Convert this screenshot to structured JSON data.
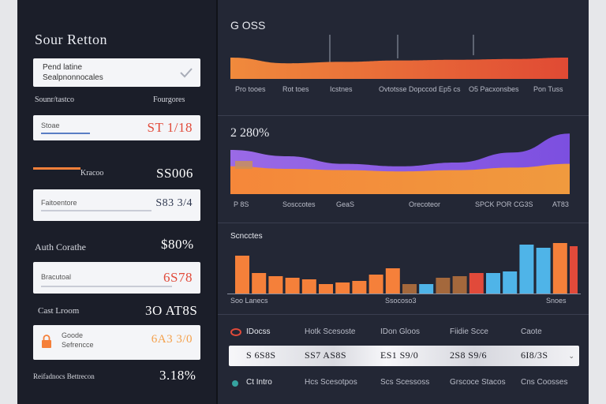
{
  "sidebar": {
    "title": "Sour Retton",
    "search_card": {
      "line1": "Pend latine",
      "line2": "Sealpnonnocales"
    },
    "section_header": {
      "left": "Sounr/tastco",
      "right": "Fourgores"
    },
    "field1": {
      "label": "Stoae",
      "value": "ST 1/18"
    },
    "row2": {
      "label": "Kracoo",
      "value": "SS006"
    },
    "field2": {
      "label": "Faitoentore",
      "value": "S83 3/4"
    },
    "row3": {
      "label": "Auth Corathe",
      "value": "$80%"
    },
    "field3": {
      "label": "Bracutoal",
      "value": "6S78"
    },
    "row4": {
      "label": "Cast Lroom",
      "value": "3O AT8S"
    },
    "field4": {
      "line1": "Goode",
      "line2": "Sefrencce",
      "value": "6A3 3/0"
    },
    "row5": {
      "label": "Reifadnocs Bettrecon",
      "value": "3.18%"
    }
  },
  "panel_top": {
    "title": "G OSS",
    "labels": [
      "Pro tooes",
      "Rot toes",
      "Icstnes",
      "Ovtotsse Dopccod Ep5 cs",
      "O5 Pacxonsbes",
      "Pon Tuss"
    ]
  },
  "panel_mid": {
    "value": "2 280%",
    "labels": [
      "P 8S",
      "Sosccotes",
      "GeaS",
      "Orecoteor",
      "SPCK POR CG3S",
      "AT83"
    ]
  },
  "panel_bars": {
    "label": "Scncctes",
    "axis_labels": [
      "Soo Lanecs",
      "Ssocoso3",
      "Snoes"
    ]
  },
  "table": {
    "header": [
      "IDocss",
      "Hotk Scesoste",
      "IDon Gloos",
      "Fiidie Scce",
      "Caote"
    ],
    "selected": [
      "S 6S8S",
      "SS7 AS8S",
      "ES1 S9/0",
      "2S8 S9/6",
      "6I8/3S"
    ],
    "footer": [
      "Ct Intro",
      "Hcs Scesotpos",
      "Scs Scessoss",
      "Grscoce Stacos",
      "Cns Coosses"
    ]
  },
  "colors": {
    "orange": "#f5803a",
    "purple": "#8a5cf2",
    "blue": "#4fb4e8",
    "accent_red": "#e14a3a"
  },
  "chart_data": [
    {
      "type": "area",
      "title": "G OSS",
      "x": [
        0,
        1,
        2,
        3,
        4,
        5,
        6
      ],
      "series": [
        {
          "name": "orange",
          "values": [
            30,
            22,
            24,
            26,
            27,
            28,
            30
          ]
        }
      ],
      "ylim": [
        0,
        40
      ]
    },
    {
      "type": "area",
      "title": "2 280%",
      "x": [
        0,
        1,
        2,
        3,
        4,
        5,
        6
      ],
      "series": [
        {
          "name": "purple",
          "values": [
            35,
            30,
            24,
            22,
            25,
            33,
            48
          ]
        },
        {
          "name": "orange",
          "values": [
            22,
            20,
            19,
            18,
            19,
            21,
            24
          ]
        }
      ],
      "ylim": [
        0,
        55
      ]
    },
    {
      "type": "bar",
      "title": "Scncctes",
      "values": [
        48,
        26,
        22,
        20,
        18,
        12,
        14,
        16,
        24,
        32,
        12,
        12,
        20,
        22,
        26,
        26,
        28,
        62,
        58,
        64,
        60
      ],
      "colors": [
        "orange",
        "orange",
        "orange",
        "orange",
        "orange",
        "orange",
        "orange",
        "orange",
        "orange",
        "orange",
        "brown",
        "blue",
        "brown",
        "brown",
        "accent_red",
        "blue",
        "blue",
        "blue",
        "blue",
        "orange",
        "accent_red"
      ],
      "ylim": [
        0,
        70
      ]
    }
  ]
}
